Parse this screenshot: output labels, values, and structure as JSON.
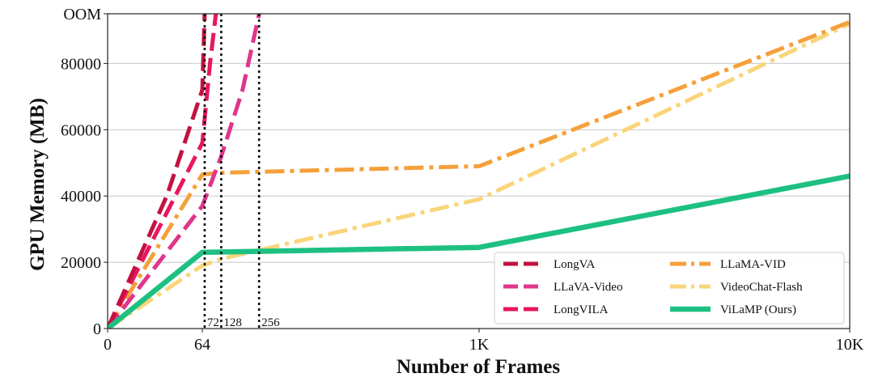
{
  "chart_data": {
    "type": "line",
    "title": "",
    "xlabel": "Number of Frames",
    "ylabel": "GPU Memory (MB)",
    "x_scale": "piecewise",
    "x_ticks": [
      {
        "value": 0,
        "label": "0"
      },
      {
        "value": 64,
        "label": "64"
      },
      {
        "value": 1000,
        "label": "1K"
      },
      {
        "value": 10000,
        "label": "10K"
      }
    ],
    "y_ticks": [
      {
        "value": 0,
        "label": "0"
      },
      {
        "value": 20000,
        "label": "20000"
      },
      {
        "value": 40000,
        "label": "40000"
      },
      {
        "value": 60000,
        "label": "60000"
      },
      {
        "value": 80000,
        "label": "80000"
      },
      {
        "value": 95000,
        "label": "OOM"
      }
    ],
    "ylim": [
      0,
      95000
    ],
    "grid": true,
    "legend_position": "lower-right",
    "vlines": [
      {
        "x": 72,
        "label": "72"
      },
      {
        "x": 128,
        "label": "128"
      },
      {
        "x": 256,
        "label": "256"
      }
    ],
    "series": [
      {
        "name": "LongVA",
        "color": "#c2123f",
        "style": "dashed",
        "points": [
          [
            0,
            0
          ],
          [
            40,
            40000
          ],
          [
            64,
            72000
          ],
          [
            72,
            95000
          ]
        ]
      },
      {
        "name": "LLaVA-Video",
        "color": "#e0358a",
        "style": "dashed",
        "points": [
          [
            0,
            0
          ],
          [
            64,
            37000
          ],
          [
            128,
            52000
          ],
          [
            200,
            72000
          ],
          [
            256,
            95000
          ]
        ]
      },
      {
        "name": "LongVILA",
        "color": "#e8175d",
        "style": "dashed",
        "points": [
          [
            0,
            0
          ],
          [
            64,
            56000
          ],
          [
            90,
            80000
          ],
          [
            110,
            95000
          ]
        ]
      },
      {
        "name": "LLaMA-VID",
        "color": "#f5a03a",
        "style": "dashdot",
        "points": [
          [
            0,
            0
          ],
          [
            64,
            46500
          ],
          [
            128,
            47000
          ],
          [
            1000,
            49000
          ],
          [
            10000,
            92500
          ]
        ]
      },
      {
        "name": "VideoChat-Flash",
        "color": "#f9d57a",
        "style": "dashdot",
        "points": [
          [
            0,
            0
          ],
          [
            64,
            19000
          ],
          [
            128,
            21000
          ],
          [
            1000,
            39000
          ],
          [
            10000,
            92000
          ]
        ]
      },
      {
        "name": "ViLaMP (Ours)",
        "color": "#1ec082",
        "style": "solid",
        "points": [
          [
            0,
            0
          ],
          [
            64,
            23000
          ],
          [
            1000,
            24500
          ],
          [
            10000,
            46000
          ]
        ]
      }
    ]
  }
}
